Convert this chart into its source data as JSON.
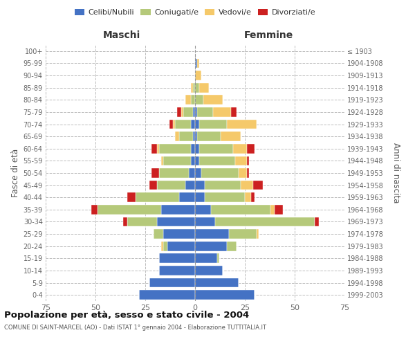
{
  "age_groups": [
    "0-4",
    "5-9",
    "10-14",
    "15-19",
    "20-24",
    "25-29",
    "30-34",
    "35-39",
    "40-44",
    "45-49",
    "50-54",
    "55-59",
    "60-64",
    "65-69",
    "70-74",
    "75-79",
    "80-84",
    "85-89",
    "90-94",
    "95-99",
    "100+"
  ],
  "birth_years": [
    "1999-2003",
    "1994-1998",
    "1989-1993",
    "1984-1988",
    "1979-1983",
    "1974-1978",
    "1969-1973",
    "1964-1968",
    "1959-1963",
    "1954-1958",
    "1949-1953",
    "1944-1948",
    "1939-1943",
    "1934-1938",
    "1929-1933",
    "1924-1928",
    "1919-1923",
    "1914-1918",
    "1909-1913",
    "1904-1908",
    "≤ 1903"
  ],
  "colors": {
    "celibi": "#4472c4",
    "coniugati": "#b5c97a",
    "vedovi": "#f5c96a",
    "divorziati": "#cc2020"
  },
  "males": {
    "celibi": [
      28,
      23,
      18,
      18,
      14,
      16,
      19,
      17,
      8,
      5,
      3,
      2,
      2,
      1,
      2,
      1,
      0,
      0,
      0,
      0,
      0
    ],
    "coniugati": [
      0,
      0,
      0,
      0,
      2,
      5,
      15,
      32,
      22,
      14,
      15,
      14,
      16,
      7,
      8,
      5,
      2,
      1,
      0,
      0,
      0
    ],
    "vedovi": [
      0,
      0,
      0,
      0,
      1,
      0,
      0,
      0,
      0,
      0,
      0,
      1,
      1,
      2,
      1,
      1,
      3,
      1,
      0,
      0,
      0
    ],
    "divorziati": [
      0,
      0,
      0,
      0,
      0,
      0,
      2,
      3,
      4,
      4,
      4,
      0,
      3,
      0,
      2,
      2,
      0,
      0,
      0,
      0,
      0
    ]
  },
  "females": {
    "celibi": [
      30,
      22,
      14,
      11,
      16,
      17,
      10,
      8,
      5,
      5,
      3,
      2,
      2,
      1,
      2,
      1,
      0,
      0,
      0,
      1,
      0
    ],
    "coniugati": [
      0,
      0,
      0,
      1,
      5,
      14,
      50,
      30,
      20,
      18,
      19,
      18,
      17,
      12,
      14,
      8,
      4,
      2,
      0,
      0,
      0
    ],
    "vedovi": [
      0,
      0,
      0,
      0,
      0,
      1,
      0,
      2,
      3,
      6,
      4,
      6,
      7,
      10,
      15,
      9,
      10,
      5,
      3,
      1,
      0
    ],
    "divorziati": [
      0,
      0,
      0,
      0,
      0,
      0,
      2,
      4,
      2,
      5,
      1,
      1,
      4,
      0,
      0,
      3,
      0,
      0,
      0,
      0,
      0
    ]
  },
  "xlim": 75,
  "title": "Popolazione per età, sesso e stato civile - 2004",
  "subtitle": "COMUNE DI SAINT-MARCEL (AO) - Dati ISTAT 1° gennaio 2004 - Elaborazione TUTTITALIA.IT",
  "ylabel_left": "Fasce di età",
  "ylabel_right": "Anni di nascita",
  "xlabel_left": "Maschi",
  "xlabel_right": "Femmine"
}
